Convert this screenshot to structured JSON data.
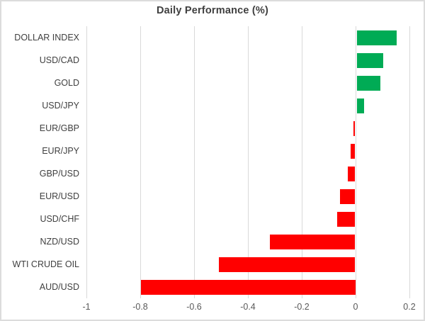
{
  "chart_data": {
    "type": "bar",
    "orientation": "horizontal",
    "title": "Daily Performance (%)",
    "categories": [
      "DOLLAR INDEX",
      "USD/CAD",
      "GOLD",
      "USD/JPY",
      "EUR/GBP",
      "EUR/JPY",
      "GBP/USD",
      "EUR/USD",
      "USD/CHF",
      "NZD/USD",
      "WTI CRUDE OIL",
      "AUD/USD"
    ],
    "values": [
      0.15,
      0.1,
      0.09,
      0.03,
      -0.01,
      -0.02,
      -0.03,
      -0.06,
      -0.07,
      -0.32,
      -0.51,
      -0.8
    ],
    "xlabel": "",
    "ylabel": "",
    "xlim": [
      -1,
      0.2
    ],
    "xticks": [
      -1,
      -0.8,
      -0.6,
      -0.4,
      -0.2,
      0,
      0.2
    ],
    "xtick_labels": [
      "-1",
      "-0.8",
      "-0.6",
      "-0.4",
      "-0.2",
      "0",
      "0.2"
    ],
    "grid": "vertical-only",
    "legend": "none",
    "colors": {
      "positive_bar": "#00ab55",
      "negative_bar": "#ff0000",
      "gridline": "#d9d9d9",
      "axis_line": "#d9d9d9",
      "title_text": "#3f3f3f",
      "category_text": "#404040",
      "tick_text": "#595959",
      "frame_border": "#dcdcdc",
      "background": "#ffffff"
    }
  }
}
